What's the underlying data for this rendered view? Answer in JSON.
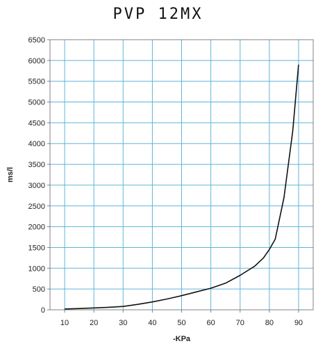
{
  "chart_data": {
    "type": "line",
    "title": "PVP 12MX",
    "xlabel": "-KPa",
    "ylabel": "ms/l",
    "xlim": [
      5,
      95
    ],
    "ylim": [
      0,
      6500
    ],
    "x_ticks": [
      10,
      20,
      30,
      40,
      50,
      60,
      70,
      80,
      90
    ],
    "y_ticks": [
      0,
      500,
      1000,
      1500,
      2000,
      2500,
      3000,
      3500,
      4000,
      4500,
      5000,
      5500,
      6000,
      6500
    ],
    "grid": true,
    "colors": {
      "grid": "#5fb4d8",
      "line": "#111111",
      "frame": "#808080"
    },
    "series": [
      {
        "x": [
          10,
          15,
          20,
          25,
          30,
          35,
          40,
          45,
          50,
          55,
          60,
          65,
          70,
          75,
          78,
          80,
          82,
          85,
          88,
          90
        ],
        "y": [
          20,
          30,
          45,
          60,
          80,
          130,
          190,
          260,
          340,
          430,
          520,
          640,
          830,
          1050,
          1250,
          1450,
          1700,
          2700,
          4300,
          5900
        ]
      }
    ]
  }
}
